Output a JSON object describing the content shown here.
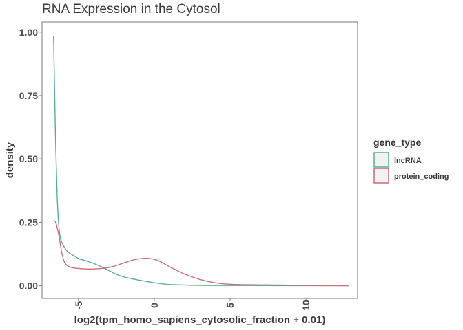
{
  "chart_data": {
    "type": "line",
    "title": "RNA Expression in the Cytosol",
    "xlabel": "log2(tpm_homo_sapiens_cytosolic_fraction + 0.01)",
    "ylabel": "density",
    "xlim": [
      -7.4,
      13.4
    ],
    "ylim": [
      -0.05,
      1.04
    ],
    "x_ticks": [
      -5,
      0,
      5,
      10
    ],
    "x_tick_labels": [
      "-5",
      "0",
      "5",
      "10"
    ],
    "y_ticks": [
      0,
      0.25,
      0.5,
      0.75,
      1
    ],
    "y_tick_labels": [
      "0.00",
      "0.25",
      "0.50",
      "0.75",
      "1.00"
    ],
    "grid": false,
    "legend": {
      "title": "gene_type",
      "position": "right",
      "entries": [
        "lncRNA",
        "protein_coding"
      ]
    },
    "series": [
      {
        "name": "lncRNA",
        "color": "#5aae8e",
        "x": [
          -6.64,
          -6.58,
          -6.5,
          -6.4,
          -6.3,
          -6.2,
          -6.0,
          -5.8,
          -5.5,
          -5.2,
          -5.0,
          -4.6,
          -4.0,
          -3.5,
          -3.0,
          -2.5,
          -2.0,
          -1.5,
          -1.0,
          -0.5,
          0.0,
          0.5,
          1.0,
          2.0,
          3.0,
          5.0,
          8.0,
          12.8
        ],
        "y": [
          0.985,
          0.8,
          0.55,
          0.35,
          0.24,
          0.19,
          0.16,
          0.14,
          0.125,
          0.115,
          0.107,
          0.1,
          0.088,
          0.075,
          0.06,
          0.045,
          0.035,
          0.028,
          0.022,
          0.017,
          0.012,
          0.008,
          0.005,
          0.003,
          0.0015,
          0.001,
          0.0005,
          0.0002
        ]
      },
      {
        "name": "protein_coding",
        "color": "#cf6a7a",
        "x": [
          -6.64,
          -6.5,
          -6.3,
          -6.1,
          -5.9,
          -5.6,
          -5.3,
          -5.0,
          -4.5,
          -4.0,
          -3.5,
          -3.0,
          -2.5,
          -2.0,
          -1.5,
          -1.0,
          -0.5,
          0.0,
          0.5,
          1.0,
          1.5,
          2.0,
          3.0,
          4.0,
          5.0,
          6.0,
          8.0,
          10.0,
          12.8
        ],
        "y": [
          0.255,
          0.25,
          0.2,
          0.13,
          0.09,
          0.075,
          0.07,
          0.068,
          0.066,
          0.066,
          0.068,
          0.072,
          0.08,
          0.09,
          0.1,
          0.106,
          0.108,
          0.104,
          0.092,
          0.075,
          0.06,
          0.046,
          0.025,
          0.012,
          0.006,
          0.004,
          0.003,
          0.0015,
          0.0005
        ]
      }
    ]
  }
}
